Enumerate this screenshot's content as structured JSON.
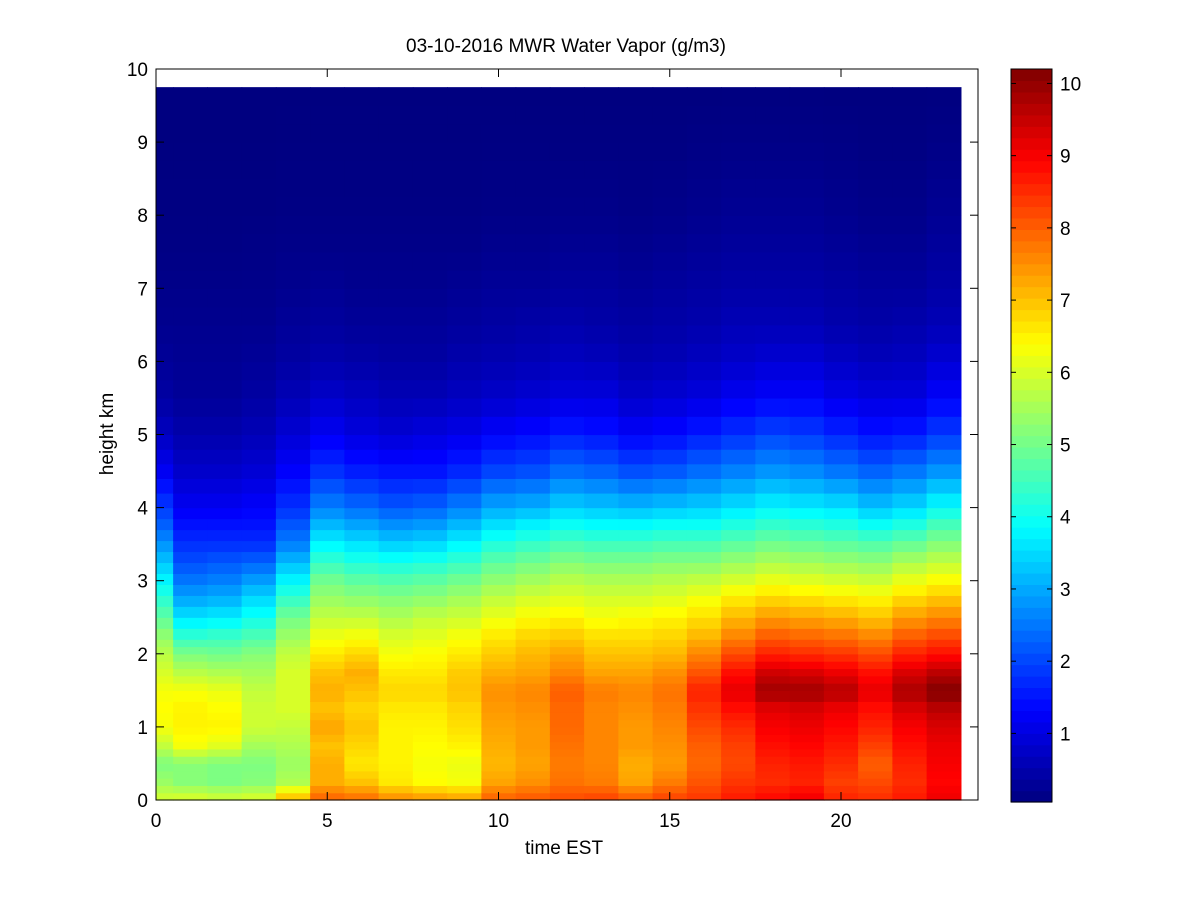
{
  "chart_data": {
    "type": "heatmap",
    "title": "03-10-2016 MWR Water Vapor (g/m3)",
    "xlabel": "time EST",
    "ylabel": "height km",
    "xlim": [
      0,
      24
    ],
    "ylim": [
      0,
      10
    ],
    "x_ticks": [
      "0",
      "5",
      "10",
      "15",
      "20"
    ],
    "y_ticks": [
      "0",
      "1",
      "2",
      "3",
      "4",
      "5",
      "6",
      "7",
      "8",
      "9",
      "10"
    ],
    "colorbar": {
      "colormap": "jet",
      "range": [
        0.05,
        10.2
      ],
      "ticks": [
        "1",
        "2",
        "3",
        "4",
        "5",
        "6",
        "7",
        "8",
        "9",
        "10"
      ]
    },
    "time_hours": [
      0,
      1,
      2,
      3,
      4,
      5,
      6,
      7,
      8,
      9,
      10,
      11,
      12,
      13,
      14,
      15,
      16,
      17,
      18,
      19,
      20,
      21,
      22,
      23
    ],
    "heights_km": [
      0,
      0.1,
      0.2,
      0.3,
      0.4,
      0.5,
      0.6,
      0.7,
      0.8,
      0.9,
      1.0,
      1.1,
      1.2,
      1.35,
      1.5,
      1.6,
      1.7,
      1.8,
      1.9,
      2.0,
      2.1,
      2.2,
      2.35,
      2.5,
      2.65,
      2.8,
      2.95,
      3.1,
      3.25,
      3.4,
      3.55,
      3.7,
      3.85,
      4.0,
      4.2,
      4.4,
      4.6,
      4.8,
      5.0,
      5.25,
      5.5,
      5.75,
      6.0,
      6.25,
      6.5,
      6.75,
      7.0,
      7.25,
      7.5,
      7.75,
      8.0,
      8.25,
      8.5,
      8.75,
      9.0,
      9.25,
      9.5,
      9.75
    ],
    "profiles": {
      "heights_km": [
        0,
        0.25,
        0.5,
        0.75,
        1.0,
        1.25,
        1.5,
        1.75,
        2.0,
        2.25,
        2.5,
        2.75,
        3.0,
        3.25,
        3.5,
        3.75,
        4.0,
        4.5,
        5.0,
        5.5,
        6.0,
        6.5,
        7.0,
        7.5,
        8.0,
        9.0,
        9.75
      ],
      "values": [
        [
          6.0,
          5.4,
          5.1,
          5.8,
          6.3,
          6.4,
          6.3,
          6.0,
          5.7,
          5.3,
          4.8,
          4.3,
          3.8,
          3.3,
          2.8,
          2.3,
          1.9,
          1.2,
          0.7,
          0.4,
          0.3,
          0.2,
          0.15,
          0.1,
          0.08,
          0.06,
          0.05
        ],
        [
          6.1,
          5.2,
          5.2,
          6.3,
          6.5,
          6.5,
          6.3,
          5.7,
          5.1,
          4.3,
          3.6,
          3.0,
          2.5,
          2.1,
          1.8,
          1.5,
          1.2,
          0.8,
          0.5,
          0.3,
          0.25,
          0.2,
          0.15,
          0.1,
          0.08,
          0.06,
          0.05
        ],
        [
          6.0,
          5.1,
          5.1,
          6.1,
          6.5,
          6.4,
          6.2,
          5.6,
          5.0,
          4.4,
          3.7,
          3.1,
          2.6,
          2.2,
          1.8,
          1.5,
          1.2,
          0.8,
          0.5,
          0.3,
          0.25,
          0.2,
          0.15,
          0.1,
          0.08,
          0.06,
          0.05
        ],
        [
          6.1,
          5.2,
          5.1,
          5.5,
          5.9,
          5.9,
          5.8,
          5.5,
          5.2,
          4.6,
          4.0,
          3.5,
          2.9,
          2.3,
          1.8,
          1.5,
          1.3,
          0.9,
          0.6,
          0.4,
          0.3,
          0.2,
          0.15,
          0.12,
          0.08,
          0.06,
          0.05
        ],
        [
          7.2,
          5.6,
          5.4,
          5.6,
          5.8,
          6.0,
          6.0,
          6.0,
          5.8,
          5.4,
          5.0,
          4.4,
          3.8,
          3.2,
          2.6,
          2.2,
          1.8,
          1.3,
          0.9,
          0.6,
          0.4,
          0.3,
          0.2,
          0.15,
          0.1,
          0.07,
          0.05
        ],
        [
          8.0,
          7.2,
          7.2,
          7.0,
          7.3,
          7.0,
          7.2,
          7.0,
          6.6,
          6.2,
          5.8,
          5.4,
          5.0,
          4.4,
          3.8,
          3.2,
          2.6,
          1.8,
          1.2,
          0.8,
          0.5,
          0.35,
          0.25,
          0.15,
          0.1,
          0.07,
          0.05
        ],
        [
          7.9,
          7.0,
          6.6,
          6.8,
          7.0,
          6.8,
          7.0,
          7.2,
          6.8,
          6.3,
          5.8,
          5.3,
          4.8,
          4.2,
          3.6,
          3.0,
          2.4,
          1.6,
          1.0,
          0.7,
          0.45,
          0.3,
          0.2,
          0.15,
          0.1,
          0.07,
          0.05
        ],
        [
          7.6,
          6.6,
          6.5,
          6.5,
          6.5,
          6.6,
          6.8,
          6.6,
          6.3,
          6.0,
          5.6,
          5.2,
          4.7,
          4.1,
          3.4,
          2.8,
          2.2,
          1.5,
          0.9,
          0.6,
          0.4,
          0.3,
          0.2,
          0.15,
          0.1,
          0.07,
          0.05
        ],
        [
          7.5,
          6.4,
          6.3,
          6.4,
          6.5,
          6.6,
          6.8,
          6.6,
          6.4,
          6.1,
          5.8,
          5.3,
          4.8,
          4.2,
          3.5,
          2.9,
          2.3,
          1.5,
          1.0,
          0.6,
          0.4,
          0.3,
          0.2,
          0.15,
          0.1,
          0.07,
          0.05
        ],
        [
          7.4,
          6.3,
          6.2,
          6.5,
          6.7,
          6.8,
          7.0,
          6.9,
          6.6,
          6.3,
          5.9,
          5.5,
          5.0,
          4.4,
          3.8,
          3.2,
          2.6,
          1.7,
          1.1,
          0.7,
          0.5,
          0.35,
          0.25,
          0.15,
          0.1,
          0.07,
          0.05
        ],
        [
          8.0,
          7.3,
          7.1,
          7.2,
          7.3,
          7.4,
          7.5,
          7.2,
          6.9,
          6.6,
          6.2,
          5.8,
          5.3,
          4.8,
          4.2,
          3.6,
          3.0,
          2.0,
          1.3,
          0.8,
          0.55,
          0.4,
          0.3,
          0.2,
          0.12,
          0.08,
          0.05
        ],
        [
          8.1,
          7.5,
          7.3,
          7.4,
          7.4,
          7.5,
          7.6,
          7.3,
          7.1,
          6.8,
          6.4,
          6.0,
          5.5,
          5.0,
          4.4,
          3.8,
          3.1,
          2.1,
          1.4,
          0.9,
          0.6,
          0.45,
          0.3,
          0.2,
          0.12,
          0.08,
          0.05
        ],
        [
          8.2,
          7.8,
          7.7,
          7.8,
          7.9,
          7.9,
          8.0,
          7.6,
          7.3,
          6.9,
          6.5,
          6.1,
          5.7,
          5.2,
          4.6,
          4.0,
          3.4,
          2.4,
          1.6,
          1.0,
          0.7,
          0.5,
          0.35,
          0.25,
          0.15,
          0.08,
          0.05
        ],
        [
          8.3,
          7.7,
          7.6,
          7.6,
          7.6,
          7.6,
          7.7,
          7.3,
          7.0,
          6.7,
          6.3,
          6.0,
          5.6,
          5.1,
          4.5,
          3.9,
          3.3,
          2.3,
          1.5,
          1.0,
          0.65,
          0.45,
          0.35,
          0.25,
          0.15,
          0.08,
          0.05
        ],
        [
          8.1,
          7.3,
          7.2,
          7.4,
          7.4,
          7.5,
          7.6,
          7.3,
          7.0,
          6.7,
          6.4,
          6.0,
          5.6,
          5.1,
          4.5,
          3.9,
          3.2,
          2.1,
          1.3,
          0.8,
          0.55,
          0.4,
          0.3,
          0.2,
          0.12,
          0.08,
          0.05
        ],
        [
          8.3,
          7.7,
          7.4,
          7.5,
          7.6,
          7.7,
          7.8,
          7.5,
          7.1,
          6.8,
          6.5,
          6.1,
          5.7,
          5.2,
          4.6,
          4.0,
          3.3,
          2.2,
          1.4,
          0.9,
          0.6,
          0.45,
          0.35,
          0.25,
          0.15,
          0.08,
          0.05
        ],
        [
          8.4,
          8.1,
          7.9,
          8.0,
          8.2,
          8.4,
          8.6,
          8.1,
          7.6,
          7.1,
          6.7,
          6.3,
          5.8,
          5.2,
          4.6,
          4.0,
          3.4,
          2.4,
          1.6,
          1.0,
          0.7,
          0.5,
          0.4,
          0.3,
          0.2,
          0.1,
          0.05
        ],
        [
          8.7,
          8.4,
          8.2,
          8.3,
          8.5,
          8.8,
          9.2,
          8.8,
          8.2,
          7.6,
          7.1,
          6.6,
          6.0,
          5.4,
          4.8,
          4.2,
          3.6,
          2.6,
          1.8,
          1.2,
          0.8,
          0.6,
          0.45,
          0.35,
          0.25,
          0.12,
          0.05
        ],
        [
          8.9,
          8.5,
          8.6,
          8.8,
          9.0,
          9.2,
          9.9,
          9.4,
          8.6,
          8.0,
          7.4,
          6.8,
          6.2,
          5.6,
          5.0,
          4.4,
          3.8,
          2.8,
          2.0,
          1.3,
          0.9,
          0.6,
          0.45,
          0.35,
          0.25,
          0.12,
          0.05
        ],
        [
          9.1,
          8.6,
          8.7,
          8.9,
          9.1,
          9.3,
          9.9,
          9.3,
          8.5,
          7.9,
          7.3,
          6.7,
          6.1,
          5.5,
          4.9,
          4.3,
          3.7,
          2.7,
          1.9,
          1.3,
          0.9,
          0.6,
          0.45,
          0.35,
          0.25,
          0.12,
          0.05
        ],
        [
          8.6,
          8.3,
          8.5,
          8.7,
          8.9,
          9.1,
          9.7,
          9.1,
          8.4,
          7.8,
          7.2,
          6.6,
          6.0,
          5.4,
          4.8,
          4.2,
          3.6,
          2.5,
          1.7,
          1.1,
          0.75,
          0.5,
          0.4,
          0.3,
          0.2,
          0.1,
          0.05
        ],
        [
          8.5,
          8.2,
          8.0,
          8.3,
          8.6,
          8.8,
          9.2,
          8.8,
          8.2,
          7.6,
          7.0,
          6.5,
          5.9,
          5.3,
          4.7,
          4.0,
          3.3,
          2.3,
          1.5,
          1.0,
          0.65,
          0.45,
          0.35,
          0.25,
          0.15,
          0.08,
          0.05
        ],
        [
          8.7,
          8.5,
          8.6,
          8.8,
          9.0,
          9.3,
          9.8,
          9.3,
          8.6,
          8.0,
          7.4,
          6.8,
          6.2,
          5.6,
          4.9,
          4.2,
          3.5,
          2.5,
          1.6,
          1.0,
          0.7,
          0.5,
          0.35,
          0.25,
          0.15,
          0.08,
          0.05
        ],
        [
          9.1,
          8.9,
          9.0,
          9.1,
          9.3,
          9.6,
          10.2,
          9.6,
          8.8,
          8.2,
          7.6,
          7.0,
          6.4,
          5.8,
          5.2,
          4.6,
          3.9,
          2.8,
          1.9,
          1.3,
          0.9,
          0.6,
          0.45,
          0.35,
          0.25,
          0.12,
          0.05
        ]
      ]
    }
  }
}
